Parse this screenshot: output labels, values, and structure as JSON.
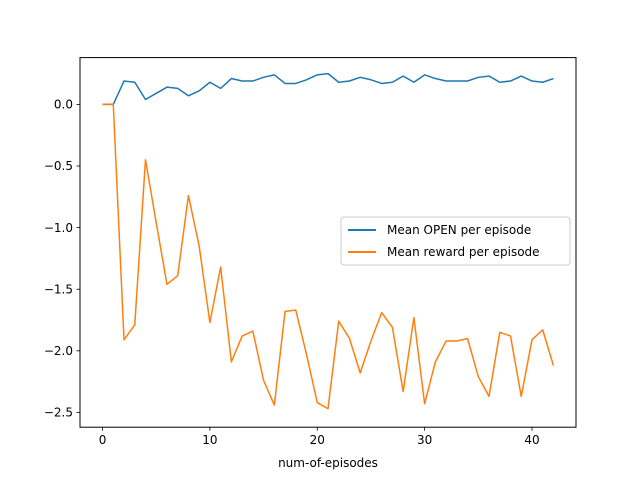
{
  "chart_data": {
    "type": "line",
    "title": "",
    "xlabel": "num-of-episodes",
    "ylabel": "",
    "xlim": [
      -2.1,
      44.1
    ],
    "ylim": [
      -2.62,
      0.38
    ],
    "xticks": [
      0,
      10,
      20,
      30,
      40
    ],
    "yticks": [
      0.0,
      -0.5,
      -1.0,
      -1.5,
      -2.0,
      -2.5
    ],
    "ytick_labels": [
      "0.0",
      "−0.5",
      "−1.0",
      "−1.5",
      "−2.0",
      "−2.5"
    ],
    "grid": false,
    "legend_position": "center-right",
    "x": [
      0,
      1,
      2,
      3,
      4,
      5,
      6,
      7,
      8,
      9,
      10,
      11,
      12,
      13,
      14,
      15,
      16,
      17,
      18,
      19,
      20,
      21,
      22,
      23,
      24,
      25,
      26,
      27,
      28,
      29,
      30,
      31,
      32,
      33,
      34,
      35,
      36,
      37,
      38,
      39,
      40,
      41,
      42
    ],
    "series": [
      {
        "name": "Mean OPEN per episode",
        "color": "#1f77b4",
        "values": [
          0.0,
          0.0,
          0.19,
          0.18,
          0.04,
          0.09,
          0.14,
          0.13,
          0.07,
          0.11,
          0.18,
          0.13,
          0.21,
          0.19,
          0.19,
          0.22,
          0.24,
          0.17,
          0.17,
          0.2,
          0.24,
          0.25,
          0.18,
          0.19,
          0.22,
          0.2,
          0.17,
          0.18,
          0.23,
          0.18,
          0.24,
          0.21,
          0.19,
          0.19,
          0.19,
          0.22,
          0.23,
          0.18,
          0.19,
          0.23,
          0.19,
          0.18,
          0.21
        ]
      },
      {
        "name": "Mean reward per episode",
        "color": "#ff7f0e",
        "values": [
          0.0,
          0.0,
          -1.91,
          -1.79,
          -0.45,
          -0.96,
          -1.46,
          -1.39,
          -0.74,
          -1.15,
          -1.77,
          -1.32,
          -2.09,
          -1.88,
          -1.84,
          -2.24,
          -2.44,
          -1.68,
          -1.67,
          -2.03,
          -2.42,
          -2.47,
          -1.76,
          -1.9,
          -2.18,
          -1.92,
          -1.69,
          -1.81,
          -2.33,
          -1.73,
          -2.43,
          -2.09,
          -1.92,
          -1.92,
          -1.9,
          -2.21,
          -2.37,
          -1.85,
          -1.88,
          -2.37,
          -1.91,
          -1.83,
          -2.12
        ]
      }
    ]
  }
}
